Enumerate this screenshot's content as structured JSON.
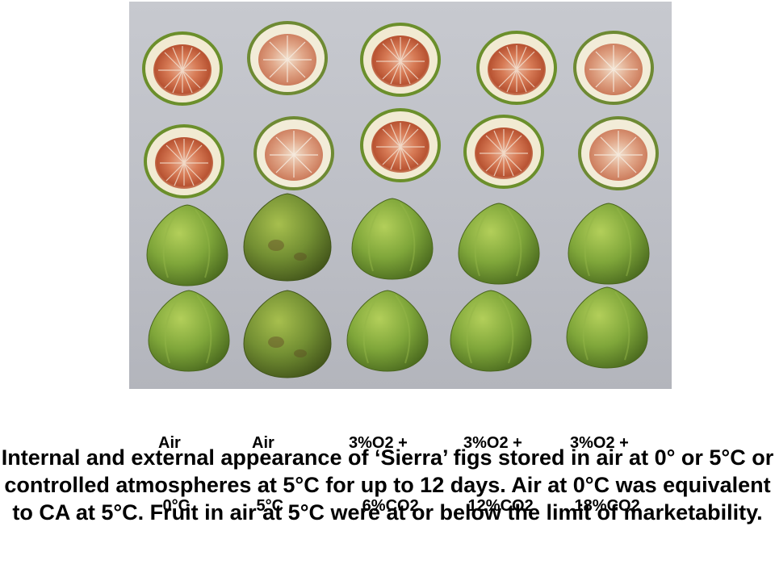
{
  "labels": [
    {
      "line1": "Air",
      "line2": " 0°C"
    },
    {
      "line1": "Air",
      "line2": " 5°C"
    },
    {
      "line1": "3%O2 +",
      "line2": "   6%CO2"
    },
    {
      "line1": "3%O2 +",
      "line2": " 12%CO2"
    },
    {
      "line1": "3%O2 +",
      "line2": " 18%CO2"
    }
  ],
  "caption": "Internal and external appearance of ‘Sierra’ figs stored in air at 0° or 5°C or controlled atmospheres at 5°C for up to 12 days. Air at 0°C was equivalent to CA at 5°C. Fruit in air at 5°C were at or below the limit of marketability.",
  "colors": {
    "background": "#ffffff",
    "photo_backdrop": "#c0c2c8",
    "fig_skin": "#7fa63a",
    "fig_flesh": "#f2ead0",
    "fig_pulp": "#c8623e"
  }
}
